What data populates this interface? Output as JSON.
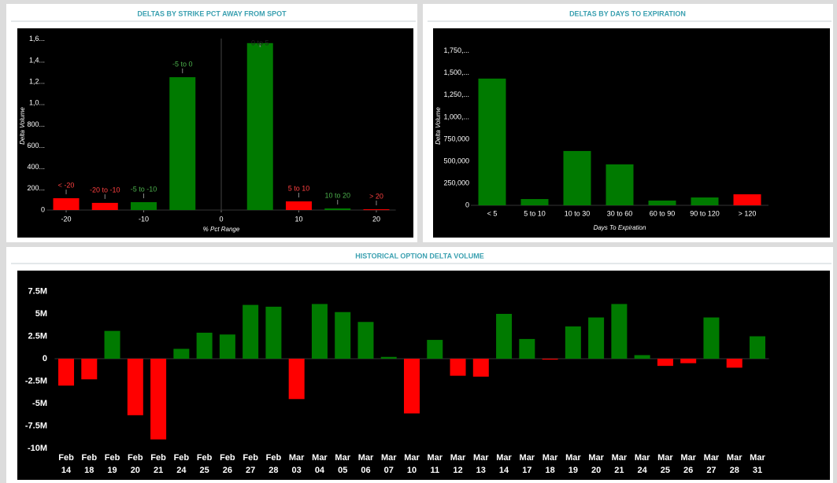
{
  "chart_data": [
    {
      "type": "bar",
      "title": "DELTAS BY STRIKE PCT AWAY FROM SPOT",
      "x": [
        -20,
        -15,
        -10,
        -5,
        5,
        10,
        15,
        20
      ],
      "labels": [
        "< -20",
        "-20 to -10",
        "-5 to -10",
        "-5 to 0",
        "0 to 5",
        "5 to 10",
        "10 to 20",
        "> 20"
      ],
      "values": [
        111000,
        67000,
        74000,
        1244000,
        1563000,
        81000,
        15000,
        7000
      ],
      "colors": [
        "#ff0000",
        "#ff0000",
        "#007a00",
        "#007a00",
        "#007a00",
        "#ff0000",
        "#007a00",
        "#ff0000"
      ],
      "label_colors": [
        "#ff4040",
        "#ff4040",
        "#4cb04c",
        "#4cb04c",
        "#222222",
        "#ff4040",
        "#4cb04c",
        "#ff4040"
      ],
      "xlim": [
        -22.5,
        22.5
      ],
      "xticks": [
        -20,
        -10,
        0,
        10,
        20
      ],
      "ylim": [
        0,
        1650000
      ],
      "yticks": [
        0,
        {
          "value": 200000,
          "label": "200..."
        },
        {
          "value": 400000,
          "label": "400..."
        },
        {
          "value": 600000,
          "label": "600..."
        },
        {
          "value": 800000,
          "label": "800..."
        },
        {
          "value": 1000000,
          "label": "1,0..."
        },
        {
          "value": 1200000,
          "label": "1,2..."
        },
        {
          "value": 1400000,
          "label": "1,4..."
        },
        {
          "value": 1600000,
          "label": "1,6..."
        }
      ],
      "xlabel": "% Pct Range",
      "ylabel": "Delta Volume"
    },
    {
      "type": "bar",
      "title": "DELTAS BY DAYS TO EXPIRATION",
      "categories": [
        "< 5",
        "5 to 10",
        "10 to 30",
        "30 to 60",
        "60 to 90",
        "90 to 120",
        "> 120"
      ],
      "values": [
        1437000,
        71000,
        616000,
        464000,
        54000,
        89000,
        125000
      ],
      "colors": [
        "#007a00",
        "#007a00",
        "#007a00",
        "#007a00",
        "#007a00",
        "#007a00",
        "#ff0000"
      ],
      "ylim": [
        0,
        1900000
      ],
      "yticks": [
        0,
        {
          "value": 250000,
          "label": "250,000"
        },
        {
          "value": 500000,
          "label": "500,000"
        },
        {
          "value": 750000,
          "label": "750,000"
        },
        {
          "value": 1000000,
          "label": "1,000,..."
        },
        {
          "value": 1250000,
          "label": "1,250,..."
        },
        {
          "value": 1500000,
          "label": "1,500,..."
        },
        {
          "value": 1750000,
          "label": "1,750,..."
        }
      ],
      "xlabel": "Days To Expiration",
      "ylabel": "Delta Volume"
    },
    {
      "type": "bar",
      "title": "HISTORICAL OPTION DELTA VOLUME",
      "categories": [
        [
          "Feb",
          "14"
        ],
        [
          "Feb",
          "18"
        ],
        [
          "Feb",
          "19"
        ],
        [
          "Feb",
          "20"
        ],
        [
          "Feb",
          "21"
        ],
        [
          "Feb",
          "24"
        ],
        [
          "Feb",
          "25"
        ],
        [
          "Feb",
          "26"
        ],
        [
          "Feb",
          "27"
        ],
        [
          "Feb",
          "28"
        ],
        [
          "Mar",
          "03"
        ],
        [
          "Mar",
          "04"
        ],
        [
          "Mar",
          "05"
        ],
        [
          "Mar",
          "06"
        ],
        [
          "Mar",
          "07"
        ],
        [
          "Mar",
          "10"
        ],
        [
          "Mar",
          "11"
        ],
        [
          "Mar",
          "12"
        ],
        [
          "Mar",
          "13"
        ],
        [
          "Mar",
          "14"
        ],
        [
          "Mar",
          "17"
        ],
        [
          "Mar",
          "18"
        ],
        [
          "Mar",
          "19"
        ],
        [
          "Mar",
          "20"
        ],
        [
          "Mar",
          "21"
        ],
        [
          "Mar",
          "24"
        ],
        [
          "Mar",
          "25"
        ],
        [
          "Mar",
          "26"
        ],
        [
          "Mar",
          "27"
        ],
        [
          "Mar",
          "28"
        ],
        [
          "Mar",
          "31"
        ]
      ],
      "values": [
        -3000000,
        -2300000,
        3100000,
        -6300000,
        -9000000,
        1100000,
        2900000,
        2700000,
        6000000,
        5800000,
        -4500000,
        6100000,
        5200000,
        4100000,
        200000,
        -6100000,
        2100000,
        -1900000,
        -2000000,
        5000000,
        2200000,
        -100000,
        3600000,
        4600000,
        6100000,
        400000,
        -800000,
        -500000,
        4600000,
        -1000000,
        2500000
      ],
      "positive_color": "#007a00",
      "negative_color": "#ff0000",
      "ylim": [
        -10500000,
        9500000
      ],
      "yticks": [
        {
          "value": 7500000,
          "label": "7.5M"
        },
        {
          "value": 5000000,
          "label": "5M"
        },
        {
          "value": 2500000,
          "label": "2.5M"
        },
        0,
        {
          "value": -2500000,
          "label": "-2.5M"
        },
        {
          "value": -5000000,
          "label": "-5M"
        },
        {
          "value": -7500000,
          "label": "-7.5M"
        },
        {
          "value": -10000000,
          "label": "-10M"
        }
      ]
    }
  ]
}
